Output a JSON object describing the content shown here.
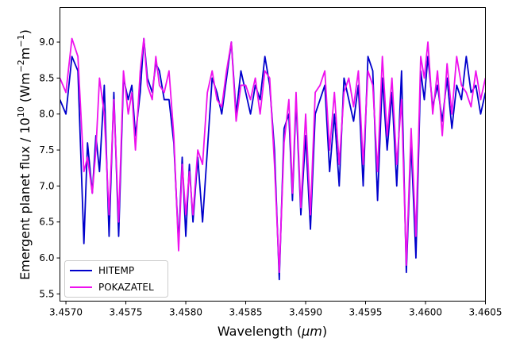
{
  "chart_data": {
    "type": "line",
    "xlabel_parts": [
      "Wavelength (",
      "μm",
      ")"
    ],
    "ylabel_parts": [
      "Emergent planet flux / 10",
      "10",
      " (Wm",
      "−2",
      "m",
      "−1",
      ")"
    ],
    "xlim": [
      3.45695,
      3.4605
    ],
    "ylim": [
      5.4,
      9.48
    ],
    "x_ticks": [
      3.457,
      3.4575,
      3.458,
      3.4585,
      3.459,
      3.4595,
      3.46,
      3.4605
    ],
    "x_tick_labels": [
      "3.4570",
      "3.4575",
      "3.4580",
      "3.4585",
      "3.4590",
      "3.4595",
      "3.4600",
      "3.4605"
    ],
    "y_ticks": [
      5.5,
      6.0,
      6.5,
      7.0,
      7.5,
      8.0,
      8.5,
      9.0
    ],
    "y_tick_labels": [
      "5.5",
      "6.0",
      "6.5",
      "7.0",
      "7.5",
      "8.0",
      "8.5",
      "9.0"
    ],
    "grid": false,
    "legend_position": "lower-left",
    "series": [
      {
        "name": "HITEMP",
        "color": "#0000cc",
        "x": [
          3.45695,
          3.457,
          3.45705,
          3.4571,
          3.45715,
          3.45718,
          3.45722,
          3.45725,
          3.45728,
          3.45732,
          3.45736,
          3.4574,
          3.45744,
          3.45748,
          3.45752,
          3.45755,
          3.45758,
          3.45762,
          3.45765,
          3.45768,
          3.45772,
          3.45775,
          3.45778,
          3.45782,
          3.45786,
          3.4579,
          3.45794,
          3.45797,
          3.458,
          3.45803,
          3.45806,
          3.4581,
          3.45814,
          3.45818,
          3.45822,
          3.45826,
          3.4583,
          3.45834,
          3.45838,
          3.45842,
          3.45846,
          3.4585,
          3.45854,
          3.45858,
          3.45862,
          3.45866,
          3.4587,
          3.45874,
          3.45878,
          3.45882,
          3.45886,
          3.45889,
          3.45892,
          3.45896,
          3.459,
          3.45904,
          3.45908,
          3.45912,
          3.45916,
          3.4592,
          3.45924,
          3.45928,
          3.45932,
          3.45936,
          3.4594,
          3.45944,
          3.45948,
          3.45952,
          3.45956,
          3.4596,
          3.45964,
          3.45968,
          3.45972,
          3.45976,
          3.4598,
          3.45984,
          3.45988,
          3.45992,
          3.45996,
          3.45999,
          3.46002,
          3.46006,
          3.4601,
          3.46014,
          3.46018,
          3.46022,
          3.46026,
          3.4603,
          3.46034,
          3.46038,
          3.46042,
          3.46046,
          3.4605
        ],
        "y": [
          8.2,
          8.0,
          8.8,
          8.6,
          6.2,
          7.6,
          6.9,
          7.7,
          7.2,
          8.4,
          6.3,
          8.3,
          6.3,
          8.5,
          8.2,
          8.4,
          7.7,
          8.3,
          9.05,
          8.5,
          8.3,
          8.7,
          8.6,
          8.2,
          8.2,
          7.6,
          6.2,
          7.4,
          6.3,
          7.3,
          6.5,
          7.4,
          6.5,
          7.5,
          8.5,
          8.3,
          8.0,
          8.5,
          9.0,
          8.0,
          8.6,
          8.3,
          8.0,
          8.4,
          8.2,
          8.8,
          8.4,
          7.5,
          5.7,
          7.8,
          8.0,
          6.8,
          8.2,
          6.6,
          7.7,
          6.4,
          8.0,
          8.2,
          8.4,
          7.2,
          8.0,
          7.0,
          8.5,
          8.2,
          7.9,
          8.4,
          7.0,
          8.8,
          8.6,
          6.8,
          8.5,
          7.5,
          8.3,
          7.0,
          8.6,
          5.8,
          7.6,
          6.0,
          8.6,
          8.2,
          8.8,
          8.1,
          8.4,
          7.9,
          8.5,
          7.8,
          8.4,
          8.2,
          8.8,
          8.3,
          8.4,
          8.0,
          8.3
        ]
      },
      {
        "name": "POKAZATEL",
        "color": "#ee11ee",
        "x": [
          3.45695,
          3.457,
          3.45705,
          3.4571,
          3.45715,
          3.45718,
          3.45722,
          3.45725,
          3.45728,
          3.45732,
          3.45736,
          3.4574,
          3.45744,
          3.45748,
          3.45752,
          3.45755,
          3.45758,
          3.45762,
          3.45765,
          3.45768,
          3.45772,
          3.45775,
          3.45778,
          3.45782,
          3.45786,
          3.4579,
          3.45794,
          3.45797,
          3.458,
          3.45803,
          3.45806,
          3.4581,
          3.45814,
          3.45818,
          3.45822,
          3.45826,
          3.4583,
          3.45834,
          3.45838,
          3.45842,
          3.45846,
          3.4585,
          3.45854,
          3.45858,
          3.45862,
          3.45866,
          3.4587,
          3.45874,
          3.45878,
          3.45882,
          3.45886,
          3.45889,
          3.45892,
          3.45896,
          3.459,
          3.45904,
          3.45908,
          3.45912,
          3.45916,
          3.4592,
          3.45924,
          3.45928,
          3.45932,
          3.45936,
          3.4594,
          3.45944,
          3.45948,
          3.45952,
          3.45956,
          3.4596,
          3.45964,
          3.45968,
          3.45972,
          3.45976,
          3.4598,
          3.45984,
          3.45988,
          3.45992,
          3.45996,
          3.45999,
          3.46002,
          3.46006,
          3.4601,
          3.46014,
          3.46018,
          3.46022,
          3.46026,
          3.4603,
          3.46034,
          3.46038,
          3.46042,
          3.46046,
          3.4605
        ],
        "y": [
          8.5,
          8.3,
          9.05,
          8.8,
          7.2,
          7.4,
          6.9,
          7.5,
          8.5,
          8.0,
          6.6,
          8.2,
          6.5,
          8.6,
          8.0,
          8.3,
          7.5,
          8.6,
          9.05,
          8.4,
          8.2,
          8.8,
          8.4,
          8.3,
          8.6,
          7.7,
          6.1,
          7.3,
          6.6,
          7.2,
          6.6,
          7.5,
          7.3,
          8.3,
          8.6,
          8.2,
          8.1,
          8.6,
          9.0,
          7.9,
          8.4,
          8.4,
          8.2,
          8.5,
          8.0,
          8.6,
          8.5,
          7.3,
          5.8,
          7.6,
          8.2,
          6.9,
          8.3,
          6.7,
          8.0,
          6.6,
          8.3,
          8.4,
          8.6,
          7.5,
          8.3,
          7.3,
          8.3,
          8.5,
          8.1,
          8.6,
          7.3,
          8.6,
          8.4,
          7.2,
          8.8,
          7.7,
          8.5,
          7.3,
          8.2,
          5.9,
          7.8,
          6.3,
          8.8,
          8.5,
          9.0,
          8.0,
          8.6,
          7.7,
          8.7,
          8.0,
          8.8,
          8.4,
          8.3,
          8.1,
          8.6,
          8.2,
          8.5
        ]
      }
    ]
  }
}
